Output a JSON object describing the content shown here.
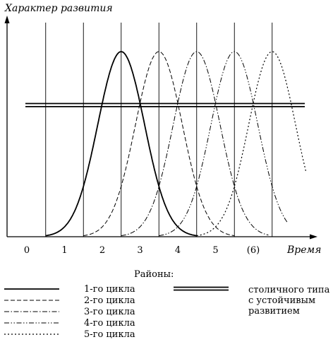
{
  "chart_data": {
    "type": "line",
    "ylabel": "Характер развития",
    "xlabel": "Время",
    "x_ticks": [
      "0",
      "1",
      "2",
      "3",
      "4",
      "5",
      "(6)"
    ],
    "xlim": [
      -0.5,
      7.5
    ],
    "ylim": [
      0,
      1
    ],
    "grid": true,
    "legend": "bottom",
    "legend_title": "Районы:",
    "series": [
      {
        "name": "1-го цикла",
        "style": "solid",
        "center": 2.5,
        "peak": 0.97,
        "x_range": [
          0.5,
          4.5
        ]
      },
      {
        "name": "2-го цикла",
        "style": "dashed",
        "center": 3.5,
        "peak": 0.97,
        "x_range": [
          1.5,
          5.5
        ]
      },
      {
        "name": "3-го цикла",
        "style": "dashdot",
        "center": 4.5,
        "peak": 0.97,
        "x_range": [
          2.5,
          6.4
        ]
      },
      {
        "name": "4-го цикла",
        "style": "dashdotdot",
        "center": 5.5,
        "peak": 0.97,
        "x_range": [
          3.5,
          6.9
        ]
      },
      {
        "name": "5-го цикла",
        "style": "dotted",
        "center": 6.5,
        "peak": 0.97,
        "x_range": [
          4.5,
          7.4
        ]
      }
    ],
    "baseline_series": {
      "name": "столичного типа с устойчивым развитием",
      "style": "double",
      "y": 0.69
    }
  },
  "legend": {
    "title": "Районы:",
    "items": [
      "1-го цикла",
      "2-го цикла",
      "3-го цикла",
      "4-го цикла",
      "5-го цикла"
    ],
    "double_line_lines": [
      "столичного типа",
      "с устойчивым",
      "развитием"
    ]
  }
}
